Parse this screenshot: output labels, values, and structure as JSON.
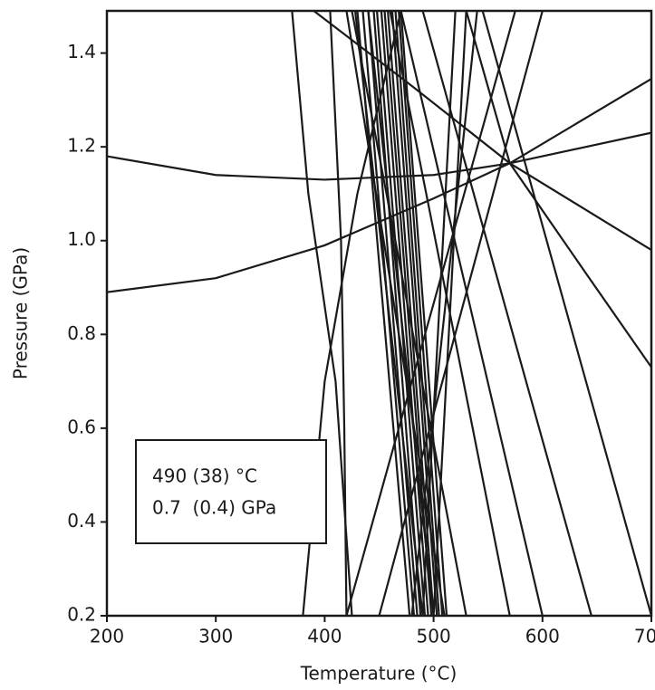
{
  "chart_data": {
    "type": "line",
    "xlabel": "Temperature (°C)",
    "ylabel": "Pressure (GPa)",
    "annotation": [
      "490 (38) °C",
      "0.7  (0.4) GPa"
    ],
    "color": "#1a1a1a",
    "xlim": [
      200,
      700
    ],
    "ylim": [
      0.2,
      1.49
    ],
    "xticks": [
      200,
      300,
      400,
      500,
      600,
      700
    ],
    "yticks": [
      0.2,
      0.4,
      0.6,
      0.8,
      {
        "value": 1,
        "label": "1.0"
      },
      1.2,
      1.4
    ],
    "series": [
      {
        "x": [
          200,
          300,
          400,
          500,
          570,
          700
        ],
        "values": [
          1.18,
          1.14,
          1.13,
          1.14,
          1.165,
          1.23
        ]
      },
      {
        "x": [
          200,
          300,
          400,
          500,
          570,
          700
        ],
        "values": [
          0.89,
          0.92,
          0.99,
          1.09,
          1.165,
          1.345
        ]
      },
      {
        "x": [
          390,
          480,
          570,
          700
        ],
        "values": [
          1.49,
          1.33,
          1.165,
          0.98
        ]
      },
      {
        "x": [
          530,
          570,
          640,
          700
        ],
        "values": [
          1.49,
          1.165,
          0.93,
          0.73
        ]
      },
      {
        "x": [
          545,
          700
        ],
        "values": [
          1.49,
          0.2
        ]
      },
      {
        "x": [
          490,
          645
        ],
        "values": [
          1.49,
          0.2
        ]
      },
      {
        "x": [
          470,
          600
        ],
        "values": [
          1.49,
          0.2
        ]
      },
      {
        "x": [
          460,
          570
        ],
        "values": [
          1.49,
          0.2
        ]
      },
      {
        "x": [
          450,
          600
        ],
        "values": [
          0.2,
          1.49
        ]
      },
      {
        "x": [
          420,
          575
        ],
        "values": [
          0.2,
          1.49
        ]
      },
      {
        "x": [
          480,
          540
        ],
        "values": [
          0.2,
          1.49
        ]
      },
      {
        "x": [
          500,
          530
        ],
        "values": [
          0.2,
          1.49
        ]
      },
      {
        "x": [
          490,
          520
        ],
        "values": [
          0.2,
          1.49
        ]
      },
      {
        "x": [
          380,
          400,
          430,
          470
        ],
        "values": [
          0.2,
          0.7,
          1.1,
          1.49
        ]
      },
      {
        "x": [
          425,
          410,
          385,
          370
        ],
        "values": [
          0.2,
          0.7,
          1.1,
          1.49
        ]
      },
      {
        "x": [
          420,
          418,
          415,
          405
        ],
        "values": [
          0.2,
          0.6,
          1.0,
          1.49
        ]
      },
      {
        "x": [
          430,
          478
        ],
        "values": [
          1.49,
          0.2
        ]
      },
      {
        "x": [
          435,
          482
        ],
        "values": [
          1.49,
          0.2
        ]
      },
      {
        "x": [
          440,
          485
        ],
        "values": [
          1.49,
          0.2
        ]
      },
      {
        "x": [
          445,
          488
        ],
        "values": [
          1.49,
          0.2
        ]
      },
      {
        "x": [
          448,
          492
        ],
        "values": [
          1.49,
          0.2
        ]
      },
      {
        "x": [
          452,
          495
        ],
        "values": [
          1.49,
          0.2
        ]
      },
      {
        "x": [
          455,
          498
        ],
        "values": [
          1.49,
          0.2
        ]
      },
      {
        "x": [
          458,
          500
        ],
        "values": [
          1.49,
          0.2
        ]
      },
      {
        "x": [
          462,
          503
        ],
        "values": [
          1.49,
          0.2
        ]
      },
      {
        "x": [
          465,
          505
        ],
        "values": [
          1.49,
          0.2
        ]
      },
      {
        "x": [
          468,
          508
        ],
        "values": [
          1.49,
          0.2
        ]
      },
      {
        "x": [
          470,
          512
        ],
        "values": [
          1.49,
          0.2
        ]
      },
      {
        "x": [
          440,
          500
        ],
        "values": [
          1.49,
          0.2
        ]
      },
      {
        "x": [
          428,
          490
        ],
        "values": [
          1.49,
          0.2
        ]
      },
      {
        "x": [
          425,
          530
        ],
        "values": [
          1.49,
          0.2
        ]
      },
      {
        "x": [
          420,
          510
        ],
        "values": [
          1.49,
          0.2
        ]
      }
    ]
  }
}
